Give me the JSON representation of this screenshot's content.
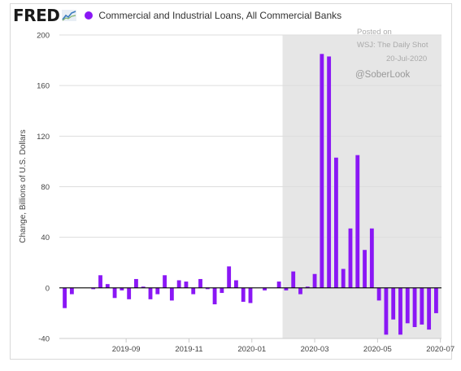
{
  "header": {
    "logo_text": "FRED",
    "logo_icon": "line-chart-icon",
    "legend_label": "Commercial and Industrial Loans, All Commercial Banks"
  },
  "colors": {
    "bar": "#8a17f5",
    "recession_shade": "#e6e6e6",
    "zero_line": "#000000",
    "grid": "#dddddd"
  },
  "annotations": {
    "posted_on": "Posted on",
    "source": "WSJ: The Daily Shot",
    "date": "20-Jul-2020",
    "handle": "@SoberLook"
  },
  "chart_data": {
    "type": "bar",
    "title": "",
    "ylabel": "Change, Billions of U.S. Dollars",
    "xlabel": "",
    "ylim": [
      -40,
      200
    ],
    "yticks": [
      -40,
      0,
      40,
      80,
      120,
      160,
      200
    ],
    "grid": "horizontal",
    "x_tick_labels": [
      "2019-09",
      "2019-11",
      "2020-01",
      "2020-03",
      "2020-05",
      "2020-07"
    ],
    "shaded_region_from_bar": 31,
    "series": [
      {
        "name": "Commercial and Industrial Loans, All Commercial Banks",
        "values": [
          -16,
          -5,
          0,
          0,
          -1,
          10,
          3,
          -8,
          -2,
          -9,
          7,
          1,
          -9,
          -5,
          10,
          -10,
          6,
          5,
          -5,
          7,
          -1,
          -13,
          -4,
          17,
          6,
          -11,
          -12,
          0,
          -2,
          0,
          5,
          -2,
          13,
          -5,
          1,
          11,
          185,
          183,
          103,
          15,
          47,
          105,
          30,
          47,
          -10,
          -37,
          -25,
          -37,
          -28,
          -31,
          -29,
          -33,
          -20
        ]
      }
    ]
  }
}
